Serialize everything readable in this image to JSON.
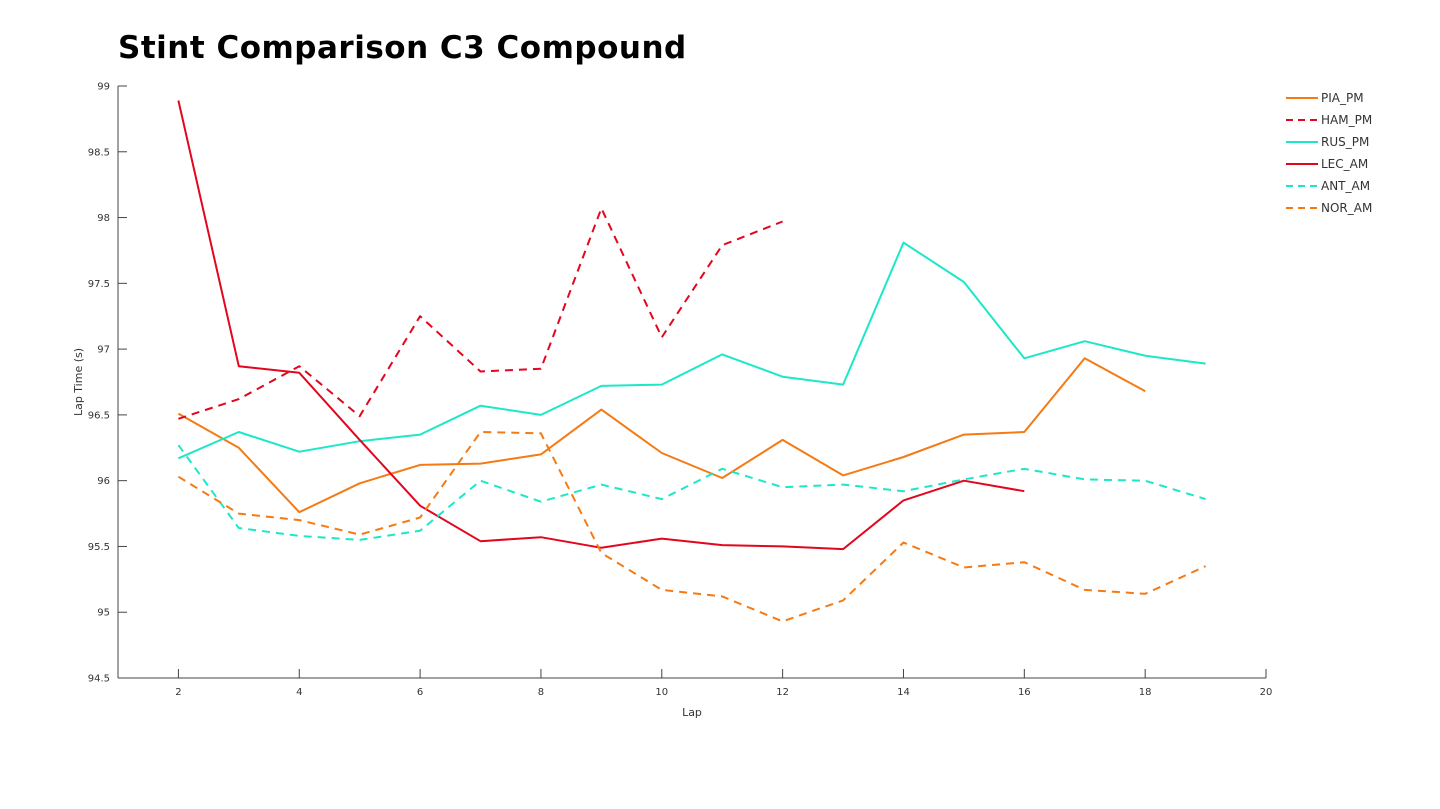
{
  "title": "Stint Comparison C3 Compound",
  "chart_data": {
    "type": "line",
    "title": "Stint Comparison C3 Compound",
    "xlabel": "Lap",
    "ylabel": "Lap Time (s)",
    "xlim": [
      1,
      20
    ],
    "ylim": [
      94.5,
      99
    ],
    "xticks": [
      2,
      4,
      6,
      8,
      10,
      12,
      14,
      16,
      18,
      20
    ],
    "yticks": [
      94.5,
      95,
      95.5,
      96,
      96.5,
      97,
      97.5,
      98,
      98.5,
      99
    ],
    "grid": false,
    "legend_position": "top-right",
    "series": [
      {
        "name": "PIA_PM",
        "color": "#f57a14",
        "dash": "solid",
        "x": [
          2,
          3,
          4,
          5,
          6,
          7,
          8,
          9,
          10,
          11,
          12,
          13,
          14,
          15,
          16,
          17,
          18
        ],
        "y": [
          96.51,
          96.25,
          95.76,
          95.98,
          96.12,
          96.13,
          96.2,
          96.54,
          96.21,
          96.02,
          96.31,
          96.04,
          96.18,
          96.35,
          96.37,
          96.93,
          96.68
        ]
      },
      {
        "name": "HAM_PM",
        "color": "#e2061e",
        "dash": "dashed",
        "x": [
          2,
          3,
          4,
          5,
          6,
          7,
          8,
          9,
          10,
          11,
          12
        ],
        "y": [
          96.47,
          96.62,
          96.87,
          96.49,
          97.25,
          96.83,
          96.85,
          98.07,
          97.09,
          97.79,
          97.97
        ]
      },
      {
        "name": "RUS_PM",
        "color": "#1ce8c8",
        "dash": "solid",
        "x": [
          2,
          3,
          4,
          5,
          6,
          7,
          8,
          9,
          10,
          11,
          12,
          13,
          14,
          15,
          16,
          17,
          18,
          19
        ],
        "y": [
          96.17,
          96.37,
          96.22,
          96.3,
          96.35,
          96.57,
          96.5,
          96.72,
          96.73,
          96.96,
          96.79,
          96.73,
          97.81,
          97.51,
          96.93,
          97.06,
          96.95,
          96.89
        ]
      },
      {
        "name": "LEC_AM",
        "color": "#e2061e",
        "dash": "solid",
        "x": [
          2,
          3,
          4,
          5,
          6,
          7,
          8,
          9,
          10,
          11,
          12,
          13,
          14,
          15,
          16
        ],
        "y": [
          98.89,
          96.87,
          96.82,
          96.31,
          95.81,
          95.54,
          95.57,
          95.49,
          95.56,
          95.51,
          95.5,
          95.48,
          95.85,
          96.0,
          95.92
        ]
      },
      {
        "name": "ANT_AM",
        "color": "#1ce8c8",
        "dash": "dashed",
        "x": [
          2,
          3,
          4,
          5,
          6,
          7,
          8,
          9,
          10,
          11,
          12,
          13,
          14,
          15,
          16,
          17,
          18,
          19
        ],
        "y": [
          96.27,
          95.64,
          95.58,
          95.55,
          95.62,
          96.0,
          95.84,
          95.97,
          95.86,
          96.09,
          95.95,
          95.97,
          95.92,
          96.01,
          96.09,
          96.01,
          96.0,
          95.86
        ]
      },
      {
        "name": "NOR_AM",
        "color": "#f57a14",
        "dash": "dashed",
        "x": [
          2,
          3,
          4,
          5,
          6,
          7,
          8,
          9,
          10,
          11,
          12,
          13,
          14,
          15,
          16,
          17,
          18,
          19
        ],
        "y": [
          96.03,
          95.75,
          95.7,
          95.59,
          95.72,
          96.37,
          96.36,
          95.45,
          95.17,
          95.12,
          94.93,
          95.09,
          95.53,
          95.34,
          95.38,
          95.17,
          95.14,
          95.35
        ]
      }
    ]
  }
}
